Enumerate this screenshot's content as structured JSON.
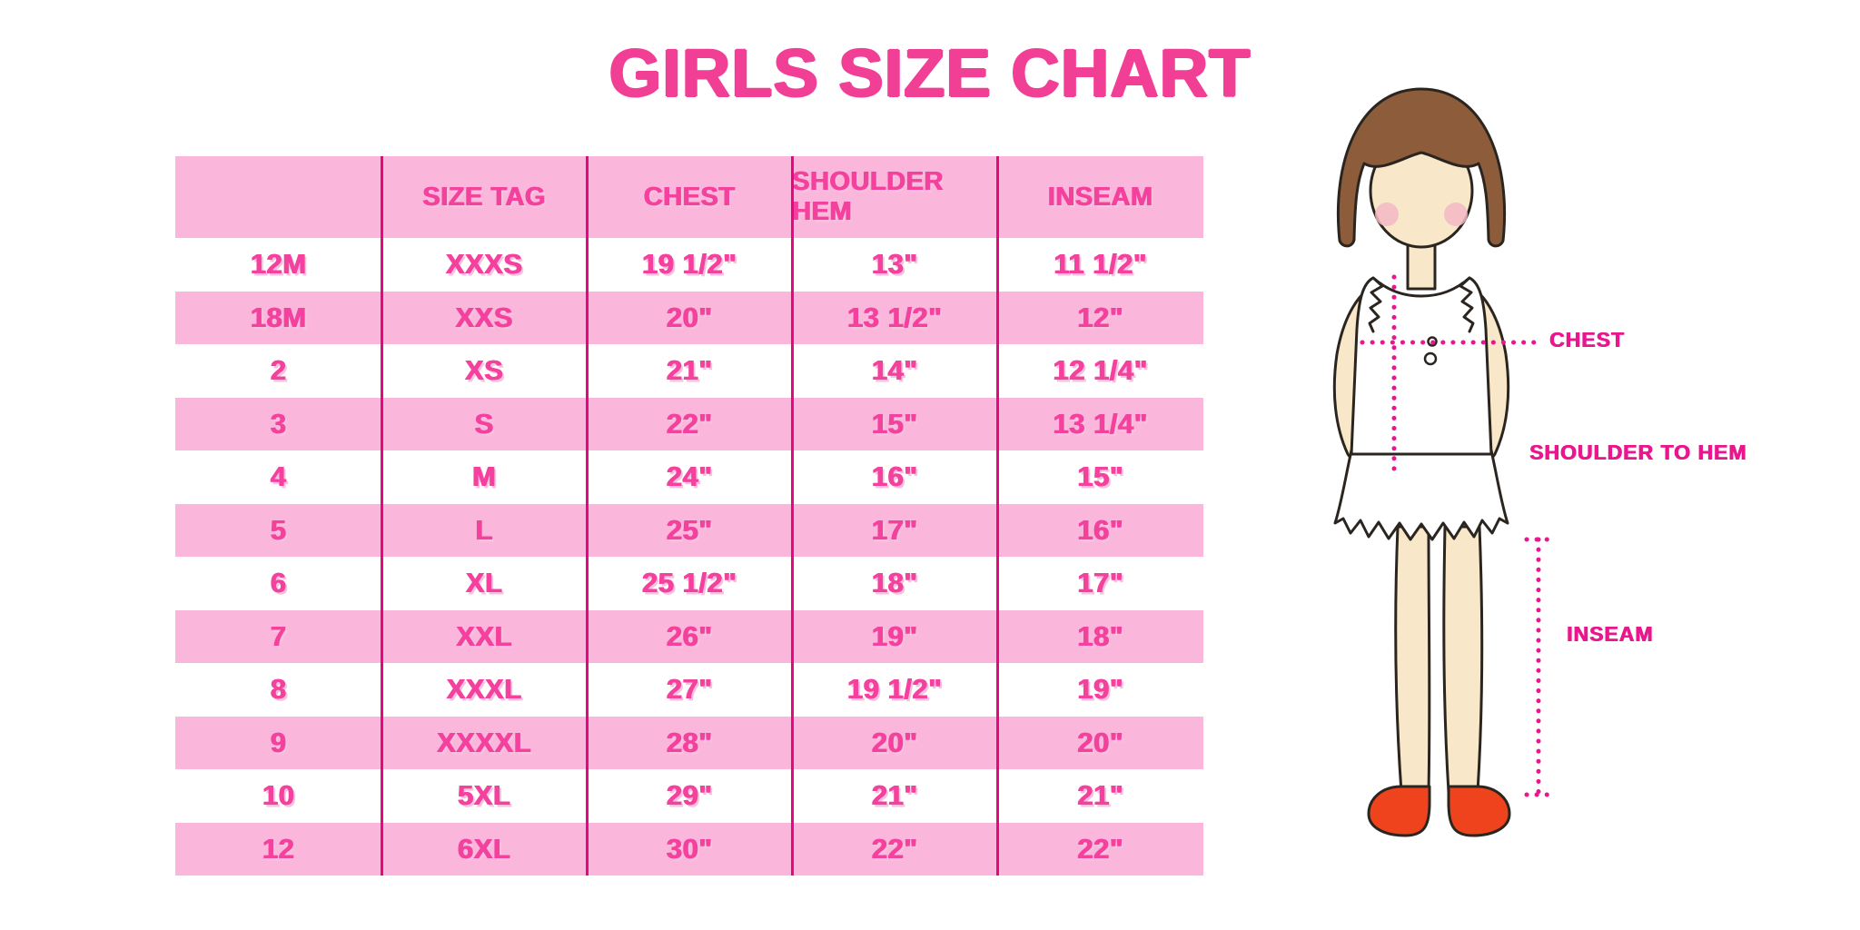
{
  "page": {
    "title": "GIRLS SIZE CHART"
  },
  "chart_data": {
    "type": "table",
    "title": "GIRLS SIZE CHART",
    "columns": [
      "",
      "SIZE TAG",
      "CHEST",
      "SHOULDER HEM",
      "INSEAM"
    ],
    "rows": [
      [
        "12M",
        "XXXS",
        "19 1/2\"",
        "13\"",
        "11 1/2\""
      ],
      [
        "18M",
        "XXS",
        "20\"",
        "13 1/2\"",
        "12\""
      ],
      [
        "2",
        "XS",
        "21\"",
        "14\"",
        "12 1/4\""
      ],
      [
        "3",
        "S",
        "22\"",
        "15\"",
        "13 1/4\""
      ],
      [
        "4",
        "M",
        "24\"",
        "16\"",
        "15\""
      ],
      [
        "5",
        "L",
        "25\"",
        "17\"",
        "16\""
      ],
      [
        "6",
        "XL",
        "25 1/2\"",
        "18\"",
        "17\""
      ],
      [
        "7",
        "XXL",
        "26\"",
        "19\"",
        "18\""
      ],
      [
        "8",
        "XXXL",
        "27\"",
        "19 1/2\"",
        "19\""
      ],
      [
        "9",
        "XXXXL",
        "28\"",
        "20\"",
        "20\""
      ],
      [
        "10",
        "5XL",
        "29\"",
        "21\"",
        "21\""
      ],
      [
        "12",
        "6XL",
        "30\"",
        "22\"",
        "22\""
      ]
    ],
    "layout": {
      "stripe_pattern": "header pink, then alternating white/pink rows",
      "grid": "vertical magenta column dividers only"
    }
  },
  "diagram": {
    "figure": "illustrated girl with brown bob haircut, white ruffled sleeveless dress, red shoes",
    "labels": {
      "chest": "CHEST",
      "shoulder_to_hem": "SHOULDER TO HEM",
      "inseam": "INSEAM"
    }
  },
  "colors": {
    "title_pink": "#F23F96",
    "stripe_pink": "#FBB6DB",
    "cell_text_pink": "#F4419E",
    "cell_shadow_pink": "#F8C2DE",
    "divider_magenta": "#E5087F",
    "label_magenta": "#E9168E",
    "hair_brown": "#8D5C3A",
    "skin": "#F8E7C8",
    "blush": "#F3B9C6",
    "shoe_red": "#EE431C",
    "outline": "#2B2520"
  }
}
